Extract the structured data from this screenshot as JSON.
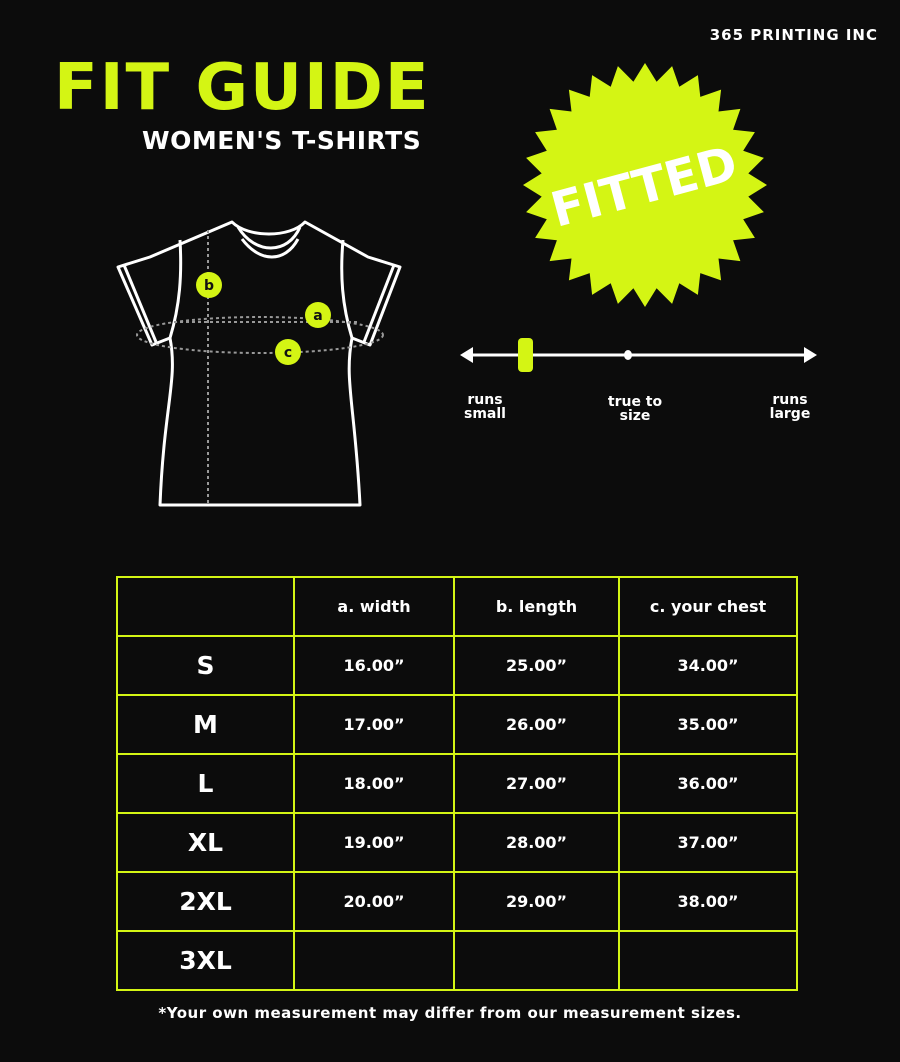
{
  "brand": "365 PRINTING INC",
  "title": "FIT GUIDE",
  "subtitle": "WOMEN'S T-SHIRTS",
  "badge": "FITTED",
  "accent_color": "#d4f514",
  "diagram": {
    "markers": [
      "a",
      "b",
      "c"
    ]
  },
  "fit_scale": {
    "labels": {
      "small": [
        "runs",
        "small"
      ],
      "true": [
        "true to",
        "size"
      ],
      "large": [
        "runs",
        "large"
      ]
    },
    "position": 0.18
  },
  "table": {
    "headers": [
      "",
      "a. width",
      "b. length",
      "c. your chest"
    ],
    "rows": [
      [
        "S",
        "16.00”",
        "25.00”",
        "34.00”"
      ],
      [
        "M",
        "17.00”",
        "26.00”",
        "35.00”"
      ],
      [
        "L",
        "18.00”",
        "27.00”",
        "36.00”"
      ],
      [
        "XL",
        "19.00”",
        "28.00”",
        "37.00”"
      ],
      [
        "2XL",
        "20.00”",
        "29.00”",
        "38.00”"
      ],
      [
        "3XL",
        "",
        "",
        ""
      ]
    ]
  },
  "note": "*Your own measurement may differ from our measurement sizes."
}
